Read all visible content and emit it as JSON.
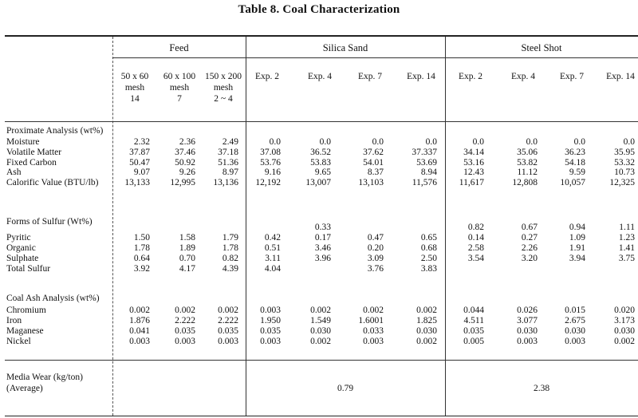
{
  "title": "Table 8.   Coal Characterization",
  "groups": {
    "feed": "Feed",
    "silica": "Silica Sand",
    "steel": "Steel Shot"
  },
  "columns": [
    {
      "line1": "50 x 60",
      "line2": "mesh",
      "line3": "14"
    },
    {
      "line1": "60 x 100",
      "line2": "mesh",
      "line3": "7"
    },
    {
      "line1": "150 x 200",
      "line2": "mesh",
      "line3": "2 ~ 4"
    },
    {
      "line1": "Exp. 2"
    },
    {
      "line1": "Exp. 4"
    },
    {
      "line1": "Exp. 7"
    },
    {
      "line1": "Exp. 14"
    },
    {
      "line1": "Exp. 2"
    },
    {
      "line1": "Exp. 4"
    },
    {
      "line1": "Exp. 7"
    },
    {
      "line1": "Exp. 14"
    }
  ],
  "sections": {
    "proximate": {
      "heading": "Proximate Analysis (wt%)",
      "rows": [
        {
          "label": "Moisture",
          "values": [
            "2.32",
            "2.36",
            "2.49",
            "0.0",
            "0.0",
            "0.0",
            "0.0",
            "0.0",
            "0.0",
            "0.0",
            "0.0"
          ]
        },
        {
          "label": "Volatile Matter",
          "values": [
            "37.87",
            "37.46",
            "37.18",
            "37.08",
            "36.52",
            "37.62",
            "37.337",
            "34.14",
            "35.06",
            "36.23",
            "35.95"
          ]
        },
        {
          "label": "Fixed Carbon",
          "values": [
            "50.47",
            "50.92",
            "51.36",
            "53.76",
            "53.83",
            "54.01",
            "53.69",
            "53.16",
            "53.82",
            "54.18",
            "53.32"
          ]
        },
        {
          "label": "Ash",
          "values": [
            "9.07",
            "9.26",
            "8.97",
            "9.16",
            "9.65",
            "8.37",
            "8.94",
            "12.43",
            "11.12",
            "9.59",
            "10.73"
          ]
        },
        {
          "label": "Calorific Value (BTU/lb)",
          "values": [
            "13,133",
            "12,995",
            "13,136",
            "12,192",
            "13,007",
            "13,103",
            "11,576",
            "11,617",
            "12,808",
            "10,057",
            "12,325"
          ]
        }
      ]
    },
    "sulfur": {
      "heading": "Forms of Sulfur (Wt%)",
      "pre": [
        "",
        "",
        "",
        "",
        "0.33",
        "",
        "",
        "0.82",
        "0.67",
        "0.94",
        "1.11"
      ],
      "rows": [
        {
          "label": "Pyritic",
          "values": [
            "1.50",
            "1.58",
            "1.79",
            "0.42",
            "0.17",
            "0.47",
            "0.65",
            "0.14",
            "0.27",
            "1.09",
            "1.23"
          ]
        },
        {
          "label": "Organic",
          "values": [
            "1.78",
            "1.89",
            "1.78",
            "0.51",
            "3.46",
            "0.20",
            "0.68",
            "2.58",
            "2.26",
            "1.91",
            "1.41"
          ]
        },
        {
          "label": "Sulphate",
          "values": [
            "0.64",
            "0.70",
            "0.82",
            "3.11",
            "3.96",
            "3.09",
            "2.50",
            "3.54",
            "3.20",
            "3.94",
            "3.75"
          ]
        },
        {
          "label": "Total Sulfur",
          "values": [
            "3.92",
            "4.17",
            "4.39",
            "4.04",
            "",
            "3.76",
            "3.83",
            "",
            "",
            "",
            ""
          ]
        }
      ]
    },
    "ash": {
      "heading": "Coal Ash Analysis (wt%)",
      "rows": [
        {
          "label": "Chromium",
          "values": [
            "0.002",
            "0.002",
            "0.002",
            "0.003",
            "0.002",
            "0.002",
            "0.002",
            "0.044",
            "0.026",
            "0.015",
            "0.020"
          ]
        },
        {
          "label": "Iron",
          "values": [
            "1.876",
            "2.222",
            "2.222",
            "1.950",
            "1.549",
            "1.6001",
            "1.825",
            "4.511",
            "3.077",
            "2.675",
            "3.173"
          ]
        },
        {
          "label": "Maganese",
          "values": [
            "0.041",
            "0.035",
            "0.035",
            "0.035",
            "0.030",
            "0.033",
            "0.030",
            "0.035",
            "0.030",
            "0.030",
            "0.030"
          ]
        },
        {
          "label": "Nickel",
          "values": [
            "0.003",
            "0.003",
            "0.003",
            "0.003",
            "0.002",
            "0.003",
            "0.002",
            "0.005",
            "0.003",
            "0.003",
            "0.002"
          ]
        }
      ]
    }
  },
  "media_wear": {
    "line1": "Media Wear (kg/ton)",
    "line2": "(Average)",
    "silica": "0.79",
    "steel": "2.38"
  }
}
